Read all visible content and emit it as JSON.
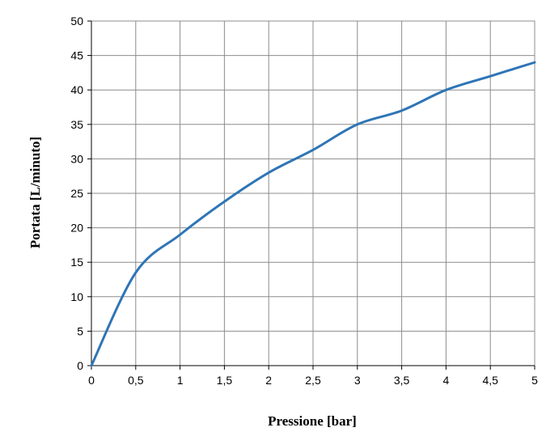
{
  "chart_data": {
    "type": "line",
    "title": "",
    "xlabel": "Pressione [bar]",
    "ylabel": "Portata  [L/minuto]",
    "xlim": [
      0,
      5
    ],
    "ylim": [
      0,
      50
    ],
    "x_ticks": [
      0,
      0.5,
      1,
      1.5,
      2,
      2.5,
      3,
      3.5,
      4,
      4.5,
      5
    ],
    "x_tick_labels": [
      "0",
      "0,5",
      "1",
      "1,5",
      "2",
      "2,5",
      "3",
      "3,5",
      "4",
      "4,5",
      "5"
    ],
    "y_ticks": [
      0,
      5,
      10,
      15,
      20,
      25,
      30,
      35,
      40,
      45,
      50
    ],
    "y_tick_labels": [
      "0",
      "5",
      "10",
      "15",
      "20",
      "25",
      "30",
      "35",
      "40",
      "45",
      "50"
    ],
    "grid": true,
    "legend": "none",
    "line_color": "#2e75b6",
    "series": [
      {
        "x": [
          0,
          0.5,
          1,
          1.5,
          2,
          2.5,
          3,
          3.5,
          4,
          4.5,
          5
        ],
        "values": [
          0,
          13.5,
          19,
          23.8,
          28,
          31.3,
          35,
          37,
          40,
          42,
          44
        ]
      }
    ]
  }
}
